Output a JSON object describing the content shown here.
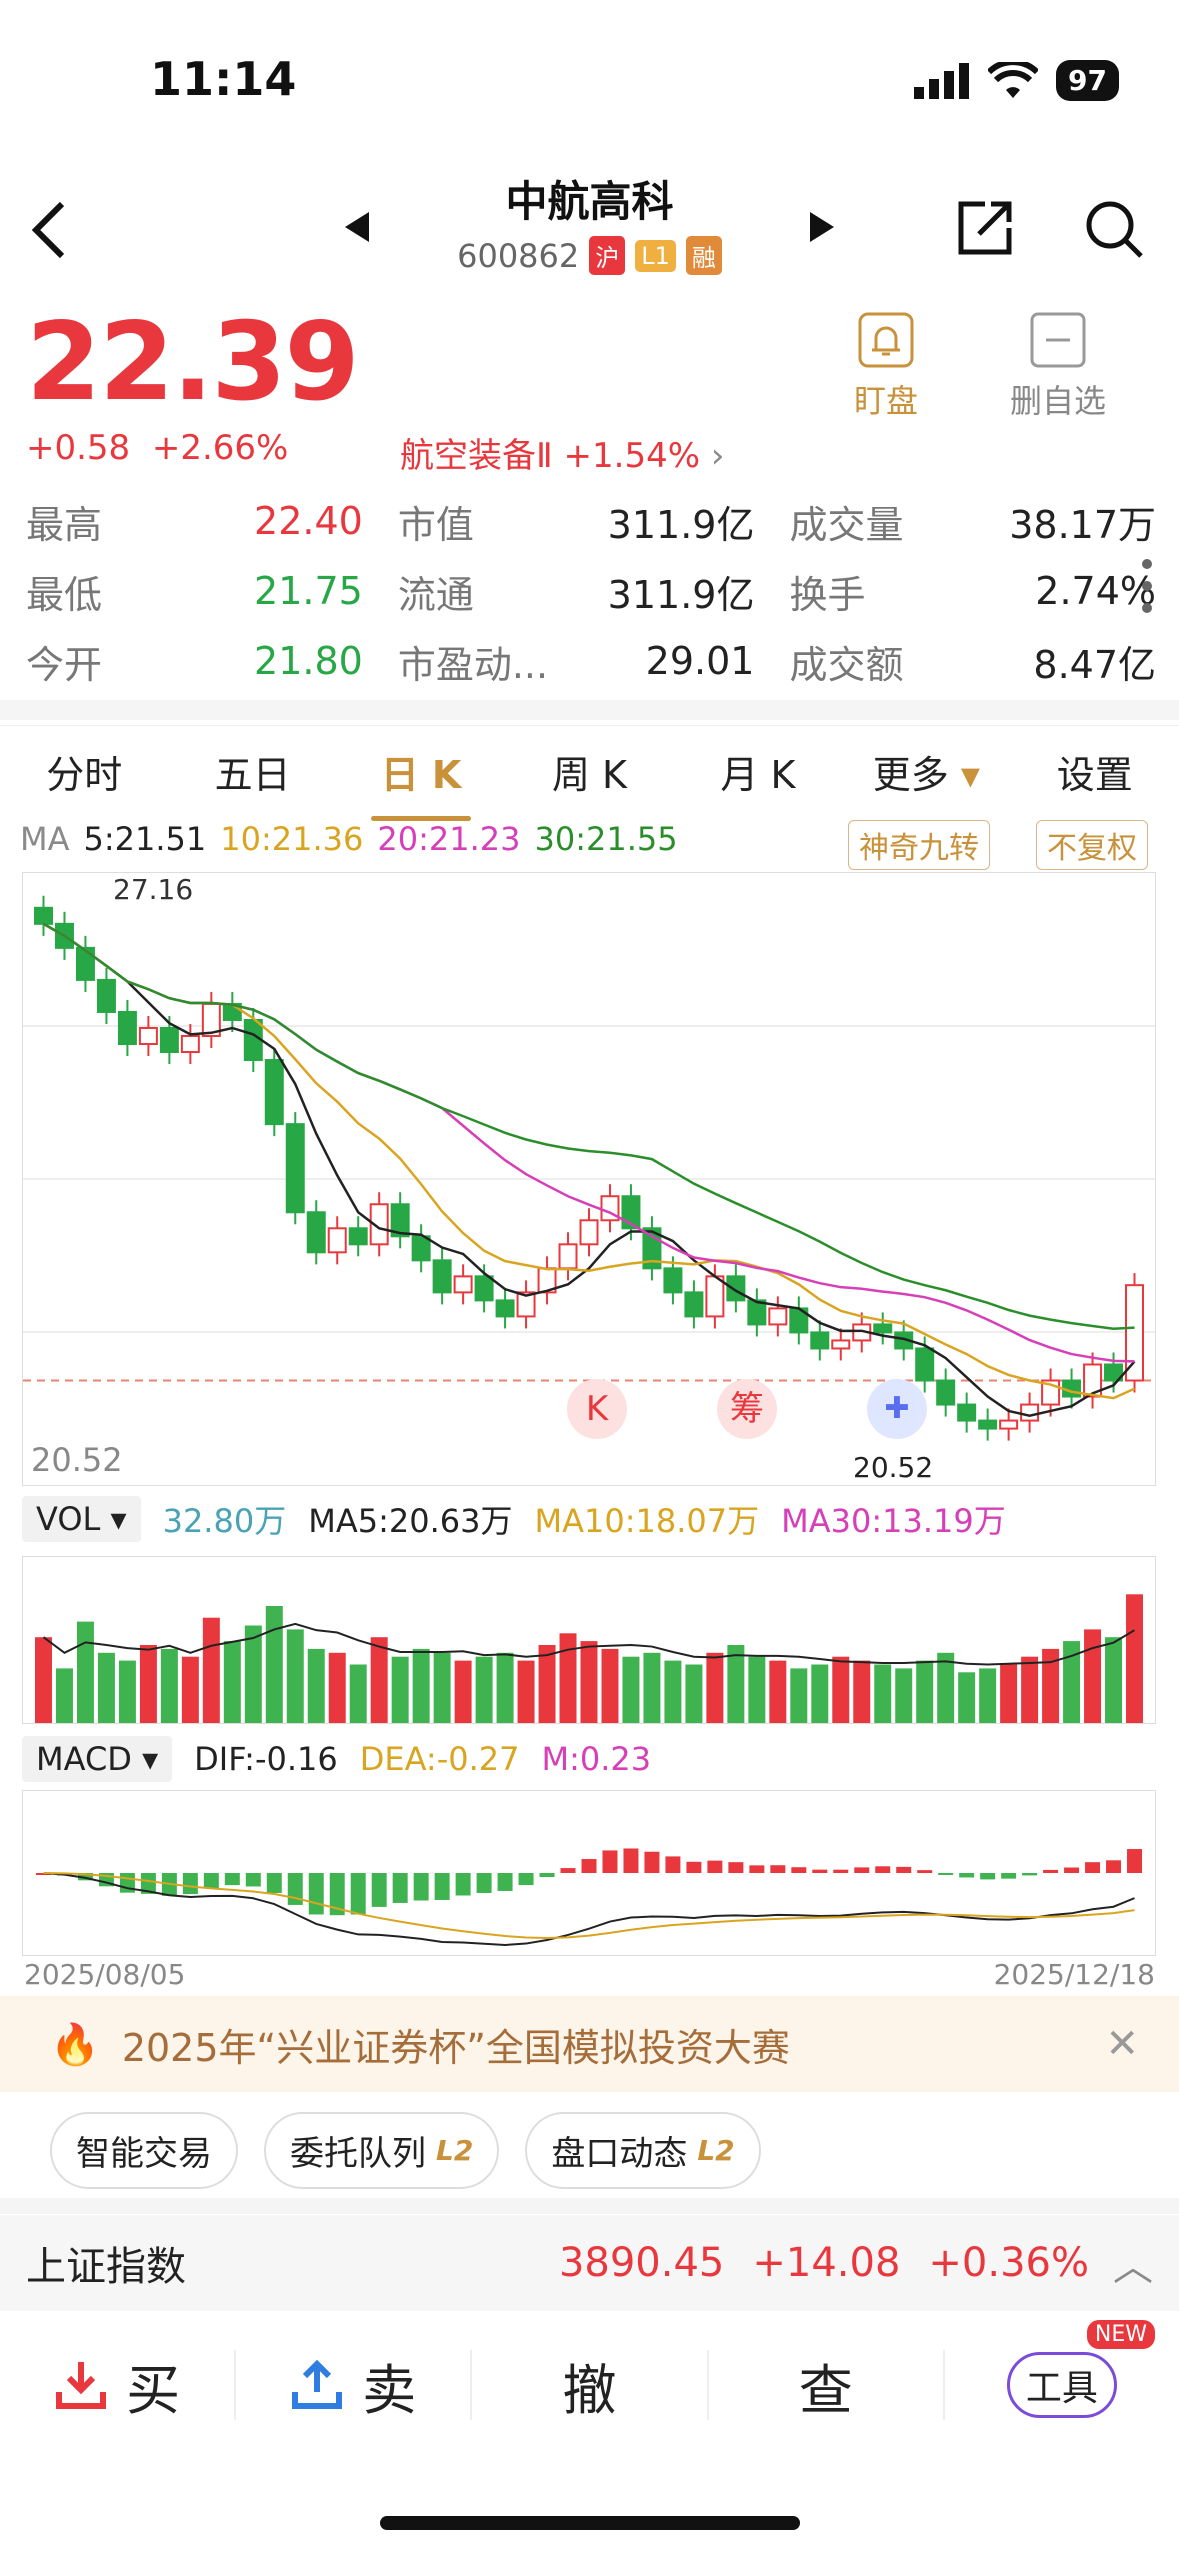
{
  "status": {
    "time": "11:14",
    "battery": "97"
  },
  "stock": {
    "name": "中航高科",
    "code": "600862",
    "tags": [
      {
        "text": "沪",
        "color": "#e8383d"
      },
      {
        "text": "L1",
        "color": "#f0b040"
      },
      {
        "text": "融",
        "color": "#e08a3a"
      }
    ],
    "price": "22.39",
    "change": "+0.58",
    "change_pct": "+2.66%",
    "sector": "航空装备Ⅱ +1.54%",
    "watch_label": "盯盘",
    "remove_label": "删自选"
  },
  "quotes": [
    [
      {
        "label": "最高",
        "value": "22.40",
        "color": "red"
      },
      {
        "label": "市值",
        "value": "311.9亿",
        "color": ""
      },
      {
        "label": "成交量",
        "value": "38.17万",
        "color": ""
      }
    ],
    [
      {
        "label": "最低",
        "value": "21.75",
        "color": "green"
      },
      {
        "label": "流通",
        "value": "311.9亿",
        "color": ""
      },
      {
        "label": "换手",
        "value": "2.74%",
        "color": ""
      }
    ],
    [
      {
        "label": "今开",
        "value": "21.80",
        "color": "green"
      },
      {
        "label": "市盈动...",
        "value": "29.01",
        "color": ""
      },
      {
        "label": "成交额",
        "value": "8.47亿",
        "color": ""
      }
    ]
  ],
  "tabs": [
    "分时",
    "五日",
    "日 K",
    "周 K",
    "月 K",
    "更多",
    "设置"
  ],
  "active_tab": 2,
  "ma": {
    "ma5": "5:21.51",
    "ma10": "10:21.36",
    "ma20": "20:21.23",
    "ma30": "30:21.55",
    "btn1": "神奇九转",
    "btn2": "不复权"
  },
  "kline": {
    "high_label": "27.16",
    "low_label": "20.52",
    "axis_low": "20.52",
    "axis_high": "27.16",
    "k_badge": "K",
    "chou_badge": "筹"
  },
  "vol": {
    "label": "VOL",
    "value": "32.80万",
    "ma5": "MA5:20.63万",
    "ma10": "MA10:18.07万",
    "ma30": "MA30:13.19万"
  },
  "macd": {
    "label": "MACD",
    "dif": "DIF:-0.16",
    "dea": "DEA:-0.27",
    "m": "M:0.23"
  },
  "dates": {
    "start": "2025/08/05",
    "end": "2025/12/18"
  },
  "banner": {
    "text": "2025年“兴业证券杯”全国模拟投资大赛"
  },
  "chips": [
    {
      "text": "智能交易",
      "l2": ""
    },
    {
      "text": "委托队列",
      "l2": "L2"
    },
    {
      "text": "盘口动态",
      "l2": "L2"
    }
  ],
  "index": {
    "name": "上证指数",
    "value": "3890.45",
    "change": "+14.08",
    "pct": "+0.36%"
  },
  "bottom": {
    "buy": "买",
    "sell": "卖",
    "cancel": "撤",
    "query": "查",
    "tools": "工具",
    "new": "NEW"
  },
  "chart_data": {
    "type": "candlestick",
    "price_range": [
      20.52,
      27.16
    ],
    "closes": [
      26.9,
      26.6,
      26.2,
      25.8,
      25.4,
      25.6,
      25.3,
      25.5,
      25.9,
      25.7,
      25.2,
      24.4,
      23.3,
      22.8,
      23.1,
      22.9,
      23.4,
      23.0,
      22.7,
      22.3,
      22.5,
      22.2,
      22.0,
      22.3,
      22.6,
      22.9,
      23.2,
      23.5,
      23.1,
      22.6,
      22.3,
      22.0,
      22.5,
      22.2,
      21.9,
      22.1,
      21.8,
      21.6,
      21.7,
      21.9,
      21.8,
      21.6,
      21.2,
      20.9,
      20.7,
      20.6,
      20.7,
      20.9,
      21.2,
      21.0,
      21.4,
      21.2,
      22.39
    ],
    "volume_range": [
      0,
      40
    ],
    "volumes": [
      22,
      14,
      26,
      18,
      16,
      20,
      19,
      17,
      27,
      21,
      25,
      30,
      24,
      19,
      18,
      15,
      22,
      17,
      19,
      18,
      16,
      17,
      18,
      16,
      20,
      23,
      21,
      19,
      17,
      18,
      16,
      15,
      18,
      20,
      17,
      16,
      14,
      15,
      17,
      16,
      15,
      14,
      16,
      18,
      13,
      14,
      15,
      17,
      19,
      21,
      24,
      22,
      33
    ]
  }
}
